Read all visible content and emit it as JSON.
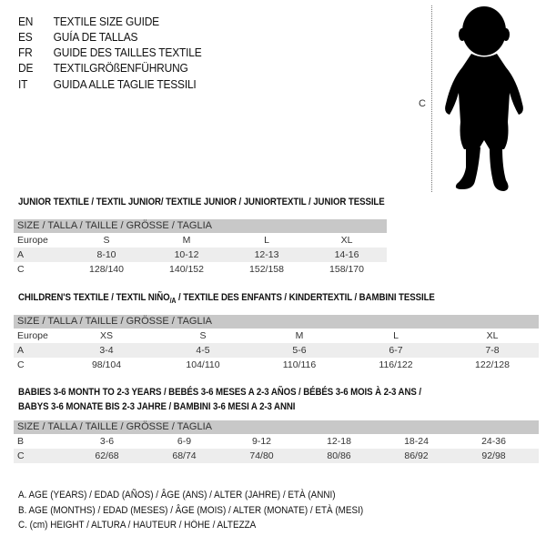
{
  "languages": [
    {
      "code": "EN",
      "text": "TEXTILE SIZE GUIDE"
    },
    {
      "code": "ES",
      "text": "GUÍA DE TALLAS"
    },
    {
      "code": "FR",
      "text": "GUIDE DES TAILLES TEXTILE"
    },
    {
      "code": "DE",
      "text": "TEXTILGRÖßENFÜHRUNG"
    },
    {
      "code": "IT",
      "text": "GUIDA ALLE TAGLIE TESSILI"
    }
  ],
  "figure": {
    "icon": "child-silhouette-icon",
    "height_label": "C"
  },
  "junior": {
    "title": "JUNIOR TEXTILE / TEXTIL JUNIOR/ TEXTILE JUNIOR / JUNIORTEXTIL / JUNIOR TESSILE",
    "header": "SIZE / TALLA / TAILLE / GRÖSSE / TAGLIA",
    "rows": [
      [
        "Europe",
        "S",
        "M",
        "L",
        "XL"
      ],
      [
        "A",
        "8-10",
        "10-12",
        "12-13",
        "14-16"
      ],
      [
        "C",
        "128/140",
        "140/152",
        "152/158",
        "158/170"
      ]
    ]
  },
  "children": {
    "title_main": "CHILDREN'S TEXTILE / TEXTIL NIÑO",
    "title_sub": "/A",
    "title_rest": " / TEXTILE DES ENFANTS / KINDERTEXTIL / BAMBINI TESSILE",
    "header": "SIZE / TALLA / TAILLE / GRÖSSE / TAGLIA",
    "rows": [
      [
        "Europe",
        "XS",
        "S",
        "M",
        "L",
        "XL"
      ],
      [
        "A",
        "3-4",
        "4-5",
        "5-6",
        "6-7",
        "7-8"
      ],
      [
        "C",
        "98/104",
        "104/110",
        "110/116",
        "116/122",
        "122/128"
      ]
    ]
  },
  "babies": {
    "title_line1": "BABIES 3-6 MONTH TO 2-3 YEARS / BEBÉS 3-6 MESES A 2-3 AÑOS / BÉBÉS 3-6 MOIS À 2-3 ANS /",
    "title_line2": "BABYS 3-6 MONATE BIS 2-3 JAHRE / BAMBINI 3-6 MESI A 2-3 ANNI",
    "header": "SIZE / TALLA / TAILLE / GRÖSSE / TAGLIA",
    "rows": [
      [
        "B",
        "3-6",
        "6-9",
        "9-12",
        "12-18",
        "18-24",
        "24-36"
      ],
      [
        "C",
        "62/68",
        "68/74",
        "74/80",
        "80/86",
        "86/92",
        "92/98"
      ]
    ]
  },
  "legend": [
    "A. AGE (YEARS) / EDAD (AÑOS) / ÂGE (ANS) / ALTER (JAHRE) / ETÀ (ANNI)",
    "B. AGE (MONTHS) / EDAD (MESES) / ÂGE (MOIS) / ALTER (MONATE) / ETÀ (MESI)",
    "C. (cm) HEIGHT / ALTURA / HAUTEUR / HÖHE / ALTEZZA"
  ],
  "colors": {
    "header_bg": "#c8c8c8",
    "row_shade": "#ededed"
  }
}
